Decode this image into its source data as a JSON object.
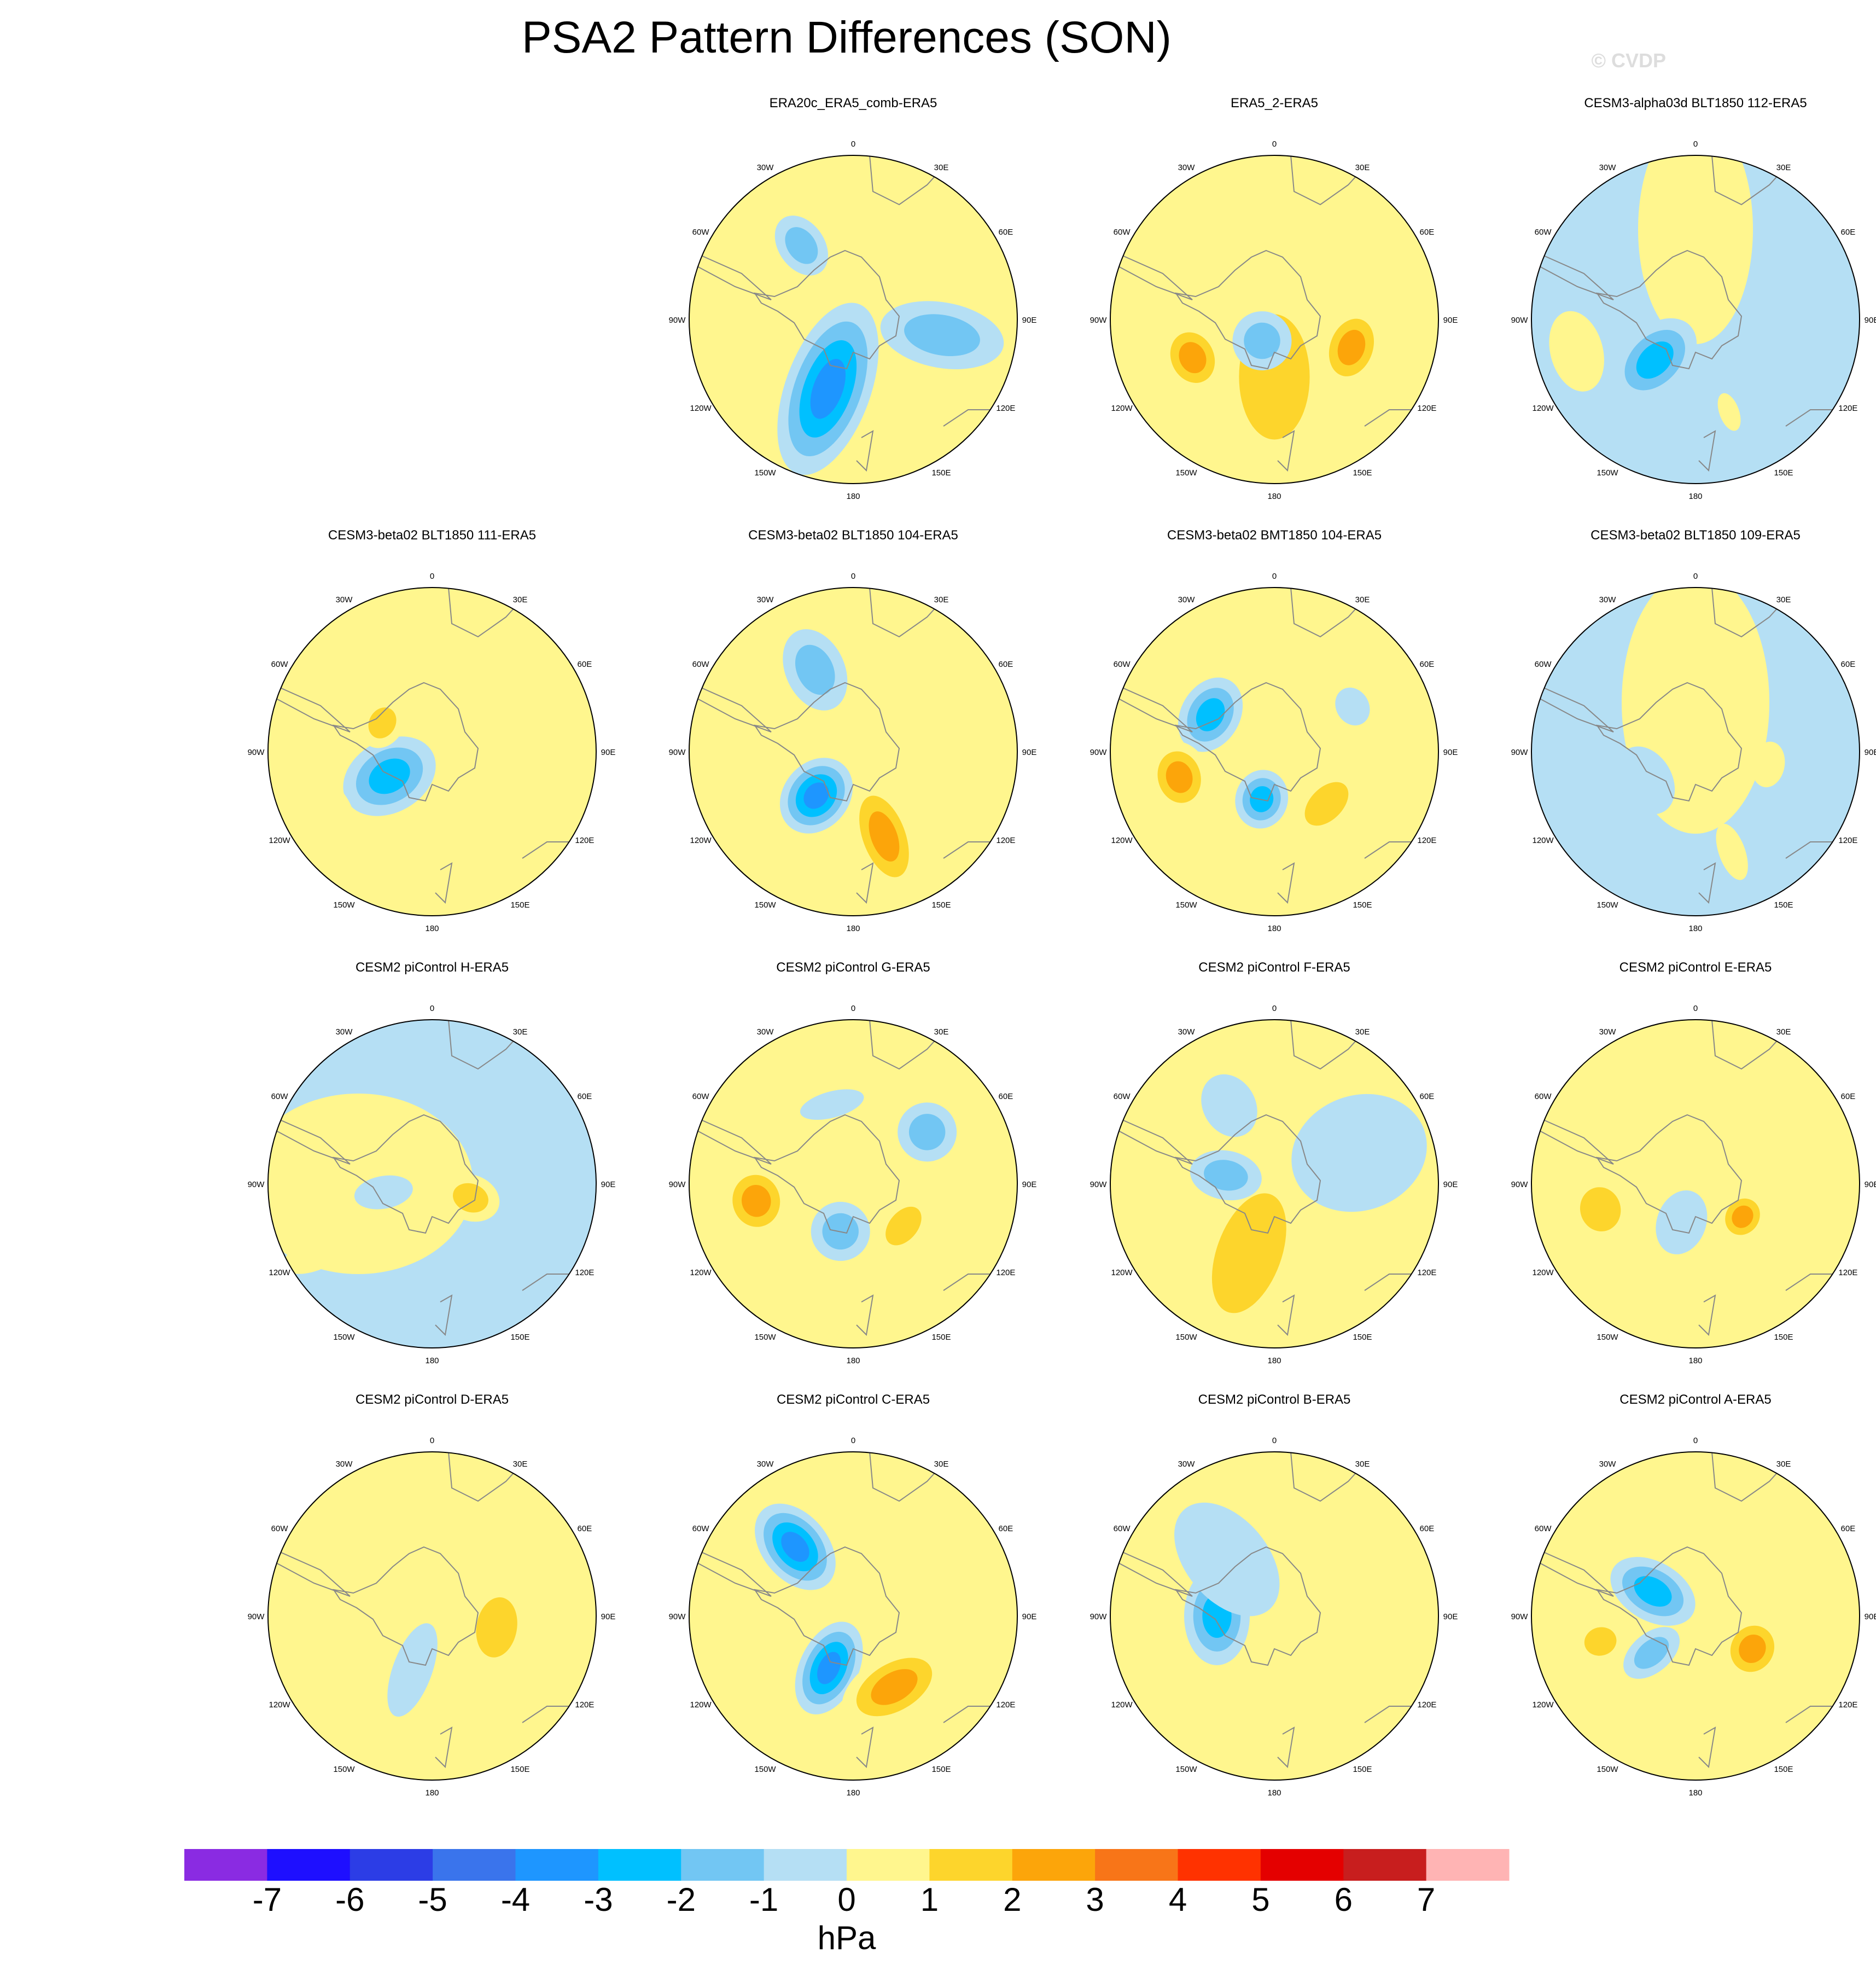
{
  "title": "PSA2 Pattern Differences (SON)",
  "watermark": "© CVDP",
  "colors": {
    "levels": [
      "#8a2be2",
      "#1e0fff",
      "#2c3de6",
      "#3a74ec",
      "#1e96ff",
      "#00c0ff",
      "#72c6f3",
      "#b5dff4",
      "#fff68e",
      "#fdd52c",
      "#fca50a",
      "#f87518",
      "#ff3200",
      "#e40000",
      "#c81e1e",
      "#ffb4b4"
    ],
    "land_outline": "#888888",
    "border": "#000000"
  },
  "colorbar": {
    "ticks": [
      "-7",
      "-6",
      "-5",
      "-4",
      "-3",
      "-2",
      "-1",
      "0",
      "1",
      "2",
      "3",
      "4",
      "5",
      "6",
      "7"
    ],
    "unit": "hPa"
  },
  "lon_labels": [
    "0",
    "30E",
    "60E",
    "90E",
    "120E",
    "150E",
    "180",
    "150W",
    "120W",
    "90W",
    "60W",
    "30W"
  ],
  "panels": [
    {
      "title": "ERA20c_ERA5_comb-ERA5",
      "base": 8,
      "blobs": [
        {
          "lon": 200,
          "r": 0.45,
          "a": 0.55,
          "b": 0.26,
          "l": -4
        },
        {
          "lon": 100,
          "r": 0.55,
          "a": 0.38,
          "b": 0.2,
          "l": -2
        },
        {
          "lon": 325,
          "r": 0.55,
          "a": 0.2,
          "b": 0.14,
          "l": -2
        }
      ]
    },
    {
      "title": "ERA5_2-ERA5",
      "base": 8,
      "blobs": [
        {
          "lon": 180,
          "r": 0.35,
          "a": 0.62,
          "b": 0.35,
          "l": 2
        },
        {
          "lon": 210,
          "r": 0.15,
          "a": 0.18,
          "b": 0.18,
          "l": -2
        },
        {
          "lon": 245,
          "r": 0.55,
          "a": 0.18,
          "b": 0.22,
          "l": 3
        },
        {
          "lon": 110,
          "r": 0.5,
          "a": 0.18,
          "b": 0.25,
          "l": 3
        }
      ]
    },
    {
      "title": "CESM3-alpha03d BLT1850 112-ERA5",
      "base": 7,
      "blobs": [
        {
          "lon": 0,
          "r": 0.55,
          "a": 0.7,
          "b": 0.35,
          "l": 1
        },
        {
          "lon": 225,
          "r": 0.35,
          "a": 0.3,
          "b": 0.2,
          "l": -3
        },
        {
          "lon": 255,
          "r": 0.75,
          "a": 0.16,
          "b": 0.25,
          "l": 1
        },
        {
          "lon": 160,
          "r": 0.6,
          "a": 0.12,
          "b": 0.06,
          "l": 1
        }
      ]
    },
    {
      "title": "CESM3-beta02 BLT1850 111-ERA5",
      "base": 8,
      "blobs": [
        {
          "lon": 240,
          "r": 0.3,
          "a": 0.3,
          "b": 0.22,
          "l": -3
        },
        {
          "lon": 300,
          "r": 0.35,
          "a": 0.13,
          "b": 0.16,
          "l": 2
        },
        {
          "lon": 240,
          "r": 0.75,
          "a": 0.16,
          "b": 0.25,
          "l": 1
        },
        {
          "lon": 100,
          "r": 0.3,
          "a": 0.06,
          "b": 0.12,
          "l": 1
        }
      ]
    },
    {
      "title": "CESM3-beta02 BLT1850 104-ERA5",
      "base": 8,
      "blobs": [
        {
          "lon": 220,
          "r": 0.35,
          "a": 0.25,
          "b": 0.2,
          "l": -4
        },
        {
          "lon": 335,
          "r": 0.55,
          "a": 0.26,
          "b": 0.18,
          "l": -2
        },
        {
          "lon": 160,
          "r": 0.55,
          "a": 0.36,
          "b": 0.18,
          "l": 3
        },
        {
          "lon": 255,
          "r": 0.65,
          "a": 0.18,
          "b": 0.24,
          "l": 1
        }
      ]
    },
    {
      "title": "CESM3-beta02 BMT1850 104-ERA5",
      "base": 8,
      "blobs": [
        {
          "lon": 300,
          "r": 0.45,
          "a": 0.18,
          "b": 0.24,
          "l": -3
        },
        {
          "lon": 195,
          "r": 0.3,
          "a": 0.18,
          "b": 0.16,
          "l": -3
        },
        {
          "lon": 255,
          "r": 0.6,
          "a": 0.18,
          "b": 0.22,
          "l": 3
        },
        {
          "lon": 135,
          "r": 0.45,
          "a": 0.16,
          "b": 0.26,
          "l": 2
        },
        {
          "lon": 60,
          "r": 0.55,
          "a": 0.1,
          "b": 0.12,
          "l": -1
        }
      ]
    },
    {
      "title": "CESM3-beta02 BLT1850 109-ERA5",
      "base": 7,
      "blobs": [
        {
          "lon": 0,
          "r": 0.3,
          "a": 0.8,
          "b": 0.45,
          "l": 1
        },
        {
          "lon": 240,
          "r": 0.35,
          "a": 0.16,
          "b": 0.22,
          "l": -1
        },
        {
          "lon": 160,
          "r": 0.65,
          "a": 0.18,
          "b": 0.08,
          "l": 1
        },
        {
          "lon": 100,
          "r": 0.45,
          "a": 0.1,
          "b": 0.14,
          "l": 1
        }
      ]
    },
    {
      "title": "CESM2 piControl H-ERA5",
      "base": 7,
      "blobs": [
        {
          "lon": 270,
          "r": 0.45,
          "a": 0.7,
          "b": 0.55,
          "l": 1
        },
        {
          "lon": 240,
          "r": 0.75,
          "a": 0.28,
          "b": 0.12,
          "l": 1
        },
        {
          "lon": 110,
          "r": 0.25,
          "a": 0.18,
          "b": 0.14,
          "l": 2
        },
        {
          "lon": 260,
          "r": 0.3,
          "a": 0.18,
          "b": 0.1,
          "l": -1
        }
      ]
    },
    {
      "title": "CESM2 piControl G-ERA5",
      "base": 8,
      "blobs": [
        {
          "lon": 260,
          "r": 0.6,
          "a": 0.2,
          "b": 0.22,
          "l": 3
        },
        {
          "lon": 130,
          "r": 0.4,
          "a": 0.14,
          "b": 0.22,
          "l": 2
        },
        {
          "lon": 195,
          "r": 0.3,
          "a": 0.18,
          "b": 0.18,
          "l": -2
        },
        {
          "lon": 55,
          "r": 0.55,
          "a": 0.18,
          "b": 0.18,
          "l": -2
        },
        {
          "lon": 345,
          "r": 0.5,
          "a": 0.08,
          "b": 0.2,
          "l": -1
        }
      ]
    },
    {
      "title": "CESM2 piControl F-ERA5",
      "base": 8,
      "blobs": [
        {
          "lon": 200,
          "r": 0.45,
          "a": 0.62,
          "b": 0.32,
          "l": 2
        },
        {
          "lon": 280,
          "r": 0.3,
          "a": 0.22,
          "b": 0.15,
          "l": -2
        },
        {
          "lon": 70,
          "r": 0.55,
          "a": 0.42,
          "b": 0.35,
          "l": -1
        },
        {
          "lon": 330,
          "r": 0.55,
          "a": 0.2,
          "b": 0.16,
          "l": -1
        }
      ]
    },
    {
      "title": "CESM2 piControl E-ERA5",
      "base": 8,
      "blobs": [
        {
          "lon": 255,
          "r": 0.6,
          "a": 0.2,
          "b": 0.22,
          "l": 2
        },
        {
          "lon": 125,
          "r": 0.35,
          "a": 0.14,
          "b": 0.16,
          "l": 3
        },
        {
          "lon": 200,
          "r": 0.25,
          "a": 0.2,
          "b": 0.15,
          "l": -1
        },
        {
          "lon": 20,
          "r": 0.55,
          "a": 0.14,
          "b": 0.1,
          "l": 1
        }
      ]
    },
    {
      "title": "CESM2 piControl D-ERA5",
      "base": 8,
      "blobs": [
        {
          "lon": 100,
          "r": 0.4,
          "a": 0.2,
          "b": 0.3,
          "l": 2
        },
        {
          "lon": 240,
          "r": 0.6,
          "a": 0.12,
          "b": 0.16,
          "l": 1
        },
        {
          "lon": 200,
          "r": 0.35,
          "a": 0.3,
          "b": 0.12,
          "l": -1
        },
        {
          "lon": 10,
          "r": 0.3,
          "a": 0.1,
          "b": 0.08,
          "l": 1
        }
      ]
    },
    {
      "title": "CESM2 piControl C-ERA5",
      "base": 8,
      "blobs": [
        {
          "lon": 320,
          "r": 0.55,
          "a": 0.3,
          "b": 0.2,
          "l": -4
        },
        {
          "lon": 205,
          "r": 0.35,
          "a": 0.3,
          "b": 0.18,
          "l": -4
        },
        {
          "lon": 150,
          "r": 0.5,
          "a": 0.2,
          "b": 0.35,
          "l": 3
        },
        {
          "lon": 70,
          "r": 0.4,
          "a": 0.2,
          "b": 0.32,
          "l": 1
        },
        {
          "lon": 260,
          "r": 0.7,
          "a": 0.12,
          "b": 0.18,
          "l": 1
        }
      ]
    },
    {
      "title": "CESM2 piControl B-ERA5",
      "base": 8,
      "blobs": [
        {
          "lon": 90,
          "r": 0.3,
          "a": 0.55,
          "b": 0.4,
          "l": 1
        },
        {
          "lon": 270,
          "r": 0.35,
          "a": 0.2,
          "b": 0.3,
          "l": -3
        },
        {
          "lon": 320,
          "r": 0.45,
          "a": 0.4,
          "b": 0.25,
          "l": -1
        },
        {
          "lon": 180,
          "r": 0.6,
          "a": 0.2,
          "b": 0.12,
          "l": 1
        }
      ]
    },
    {
      "title": "CESM2 piControl A-ERA5",
      "base": 8,
      "blobs": [
        {
          "lon": 300,
          "r": 0.3,
          "a": 0.28,
          "b": 0.18,
          "l": -3
        },
        {
          "lon": 230,
          "r": 0.35,
          "a": 0.2,
          "b": 0.12,
          "l": -2
        },
        {
          "lon": 120,
          "r": 0.4,
          "a": 0.18,
          "b": 0.2,
          "l": 3
        },
        {
          "lon": 255,
          "r": 0.6,
          "a": 0.16,
          "b": 0.14,
          "l": 2
        },
        {
          "lon": 10,
          "r": 0.5,
          "a": 0.22,
          "b": 0.1,
          "l": 1
        }
      ]
    }
  ]
}
